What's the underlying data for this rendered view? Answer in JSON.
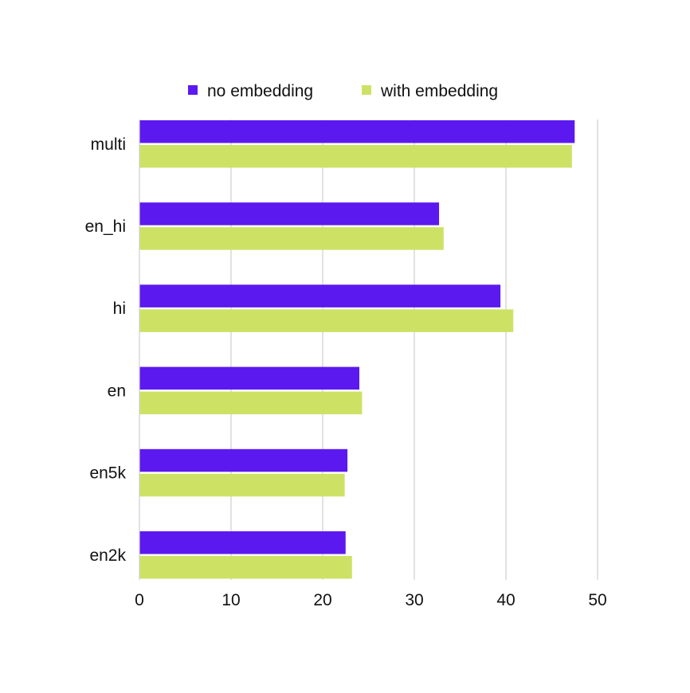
{
  "chart_data": {
    "type": "bar",
    "orientation": "horizontal",
    "categories": [
      "multi",
      "en_hi",
      "hi",
      "en",
      "en5k",
      "en2k"
    ],
    "series": [
      {
        "name": "no embedding",
        "color": "#5b19f0",
        "values": [
          47.5,
          32.7,
          39.4,
          24.0,
          22.7,
          22.5
        ]
      },
      {
        "name": "with embedding",
        "color": "#cde265",
        "values": [
          47.2,
          33.2,
          40.8,
          24.3,
          22.4,
          23.2
        ]
      }
    ],
    "xlim": [
      0,
      50
    ],
    "xticks": [
      "0",
      "10",
      "20",
      "30",
      "40",
      "50"
    ],
    "grid": true,
    "legend_position": "top-center"
  }
}
